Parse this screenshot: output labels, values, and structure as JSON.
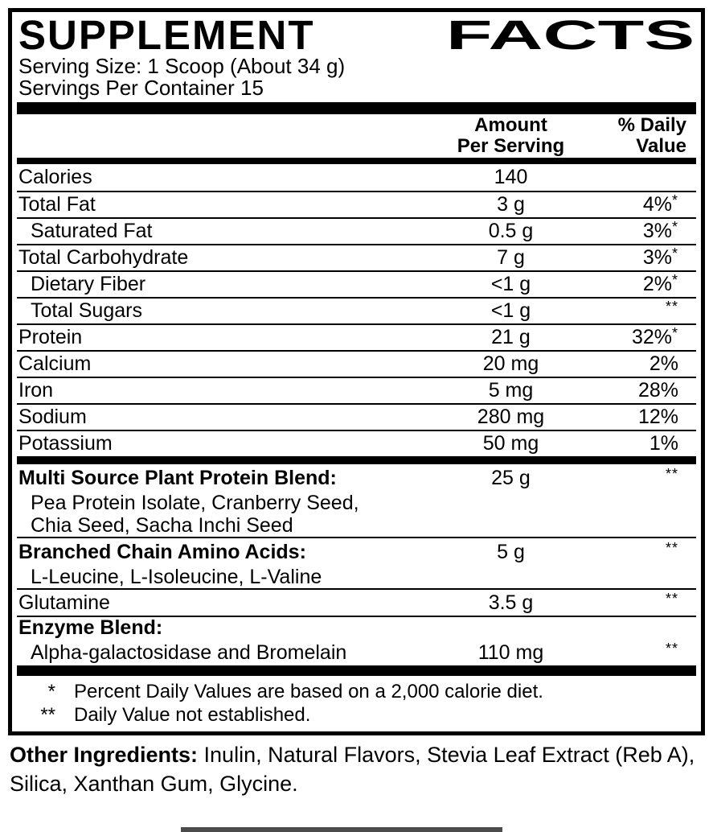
{
  "header": {
    "title_word1": "SUPPLEMENT",
    "title_word2": "FACTS",
    "serving_size": "Serving Size: 1 Scoop (About 34 g)",
    "servings_per_container": "Servings Per Container 15"
  },
  "columns": {
    "amount_line1": "Amount",
    "amount_line2": "Per Serving",
    "dv_line1": "% Daily",
    "dv_line2": "Value"
  },
  "main_rows": [
    {
      "name": "Calories",
      "amount": "140",
      "dv": "",
      "mark": ""
    },
    {
      "name": "Total Fat",
      "amount": "3 g",
      "dv": "4%",
      "mark": "*"
    },
    {
      "name": "Saturated Fat",
      "amount": "0.5 g",
      "dv": "3%",
      "mark": "*"
    },
    {
      "name": "Total Carbohydrate",
      "amount": "7 g",
      "dv": "3%",
      "mark": "*"
    },
    {
      "name": "Dietary Fiber",
      "amount": "<1 g",
      "dv": "2%",
      "mark": "*"
    },
    {
      "name": "Total Sugars",
      "amount": "<1 g",
      "dv": "",
      "mark": "**"
    },
    {
      "name": "Protein",
      "amount": "21 g",
      "dv": "32%",
      "mark": "*"
    },
    {
      "name": "Calcium",
      "amount": "20 mg",
      "dv": "2%",
      "mark": ""
    },
    {
      "name": "Iron",
      "amount": "5 mg",
      "dv": "28%",
      "mark": ""
    },
    {
      "name": "Sodium",
      "amount": "280 mg",
      "dv": "12%",
      "mark": ""
    },
    {
      "name": "Potassium",
      "amount": "50 mg",
      "dv": "1%",
      "mark": ""
    }
  ],
  "blends": {
    "protein": {
      "name": "Multi Source Plant Protein Blend:",
      "amount": "25 g",
      "mark": "**",
      "sub1": "Pea Protein Isolate, Cranberry Seed,",
      "sub2": "Chia Seed, Sacha Inchi Seed"
    },
    "bcaa": {
      "name": "Branched Chain Amino Acids:",
      "amount": "5 g",
      "mark": "**",
      "sub1": "L-Leucine, L-Isoleucine, L-Valine"
    },
    "glutamine": {
      "name": "Glutamine",
      "amount": "3.5 g",
      "mark": "**"
    },
    "enzyme": {
      "name": "Enzyme Blend:",
      "sub1": "Alpha-galactosidase and Bromelain",
      "amount": "110 mg",
      "mark": "**"
    }
  },
  "footnotes": [
    {
      "mark": "*",
      "text": "Percent Daily Values are based on a 2,000 calorie diet."
    },
    {
      "mark": "**",
      "text": "Daily Value not established."
    }
  ],
  "other_ingredients": {
    "label": "Other Ingredients:",
    "text": " Inulin, Natural Flavors, Stevia Leaf Extract (Reb A), Silica, Xanthan Gum, Glycine."
  },
  "colors": {
    "ink": "#000000",
    "background": "#ffffff"
  }
}
